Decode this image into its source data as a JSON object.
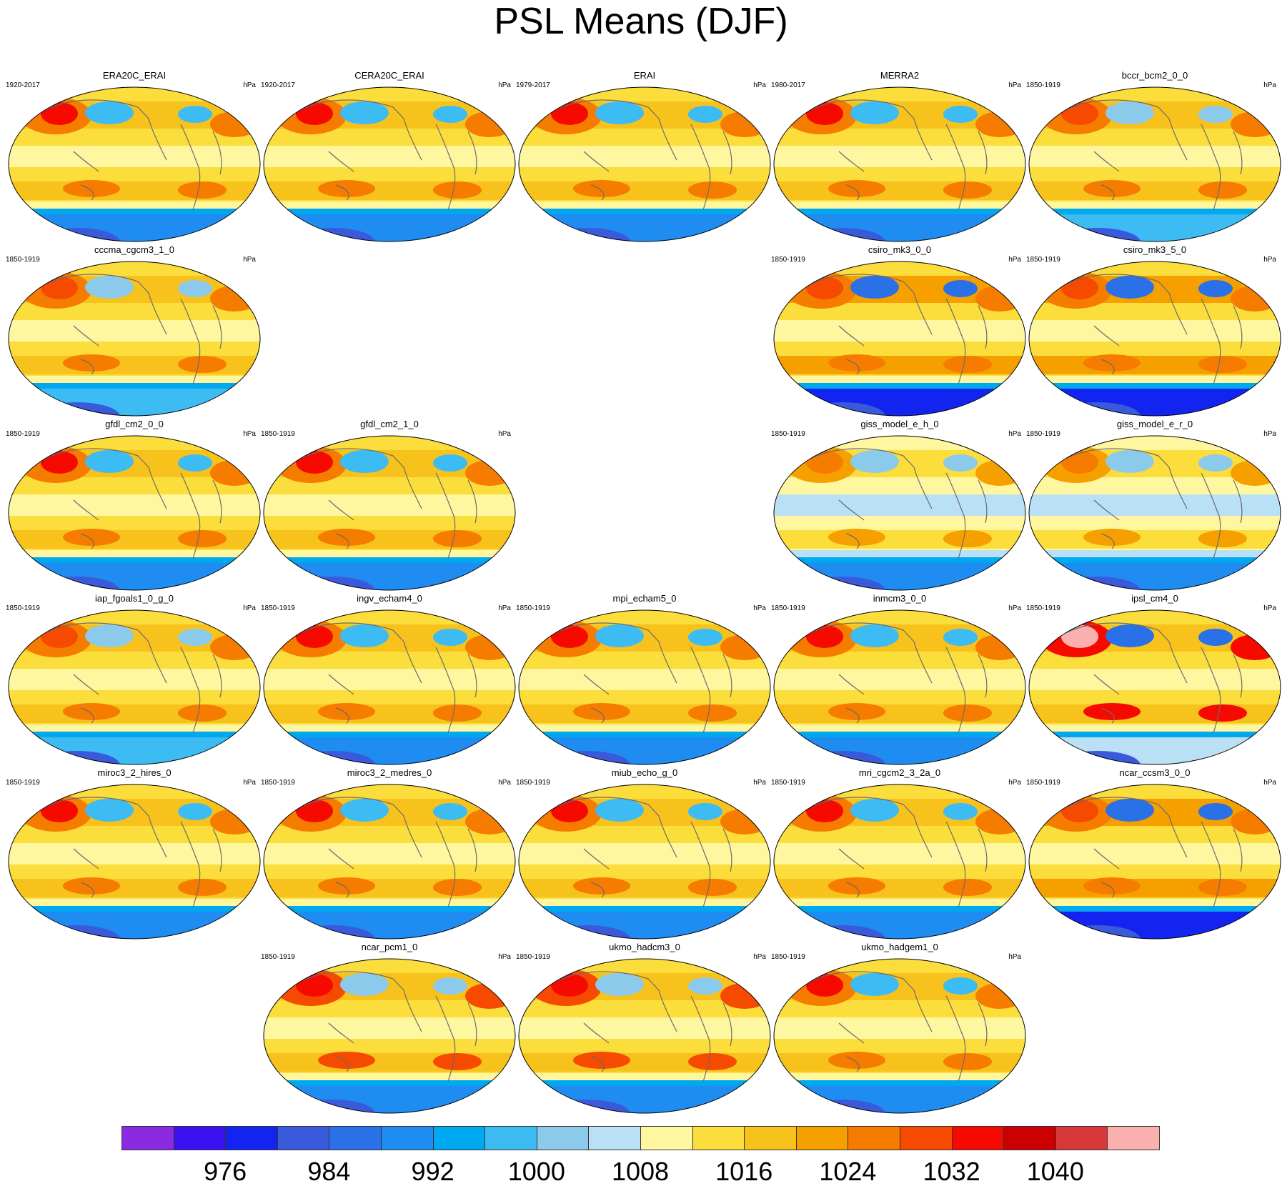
{
  "title": "PSL Means (DJF)",
  "units": "hPa",
  "panels": [
    {
      "name": "ERA20C_ERAI",
      "years": "1920-2017",
      "row": 0,
      "col": 0,
      "variant": "obs"
    },
    {
      "name": "CERA20C_ERAI",
      "years": "1920-2017",
      "row": 0,
      "col": 1,
      "variant": "obs"
    },
    {
      "name": "ERAI",
      "years": "1979-2017",
      "row": 0,
      "col": 2,
      "variant": "obs"
    },
    {
      "name": "MERRA2",
      "years": "1980-2017",
      "row": 0,
      "col": 3,
      "variant": "obs"
    },
    {
      "name": "bccr_bcm2_0_0",
      "years": "1850-1919",
      "row": 0,
      "col": 4,
      "variant": "weak"
    },
    {
      "name": "cccma_cgcm3_1_0",
      "years": "1850-1919",
      "row": 1,
      "col": 0,
      "variant": "weak"
    },
    {
      "name": "csiro_mk3_0_0",
      "years": "1850-1919",
      "row": 1,
      "col": 3,
      "variant": "strong"
    },
    {
      "name": "csiro_mk3_5_0",
      "years": "1850-1919",
      "row": 1,
      "col": 4,
      "variant": "strong"
    },
    {
      "name": "gfdl_cm2_0_0",
      "years": "1850-1919",
      "row": 2,
      "col": 0,
      "variant": "obs"
    },
    {
      "name": "gfdl_cm2_1_0",
      "years": "1850-1919",
      "row": 2,
      "col": 1,
      "variant": "obs"
    },
    {
      "name": "giss_model_e_h_0",
      "years": "1850-1919",
      "row": 2,
      "col": 3,
      "variant": "low"
    },
    {
      "name": "giss_model_e_r_0",
      "years": "1850-1919",
      "row": 2,
      "col": 4,
      "variant": "low"
    },
    {
      "name": "iap_fgoals1_0_g_0",
      "years": "1850-1919",
      "row": 3,
      "col": 0,
      "variant": "weak"
    },
    {
      "name": "ingv_echam4_0",
      "years": "1850-1919",
      "row": 3,
      "col": 1,
      "variant": "obs"
    },
    {
      "name": "mpi_echam5_0",
      "years": "1850-1919",
      "row": 3,
      "col": 2,
      "variant": "obs"
    },
    {
      "name": "inmcm3_0_0",
      "years": "1850-1919",
      "row": 3,
      "col": 3,
      "variant": "obs"
    },
    {
      "name": "ipsl_cm4_0",
      "years": "1850-1919",
      "row": 3,
      "col": 4,
      "variant": "extreme"
    },
    {
      "name": "miroc3_2_hires_0",
      "years": "1850-1919",
      "row": 4,
      "col": 0,
      "variant": "obs"
    },
    {
      "name": "miroc3_2_medres_0",
      "years": "1850-1919",
      "row": 4,
      "col": 1,
      "variant": "obs"
    },
    {
      "name": "miub_echo_g_0",
      "years": "1850-1919",
      "row": 4,
      "col": 2,
      "variant": "obs"
    },
    {
      "name": "mri_cgcm2_3_2a_0",
      "years": "1850-1919",
      "row": 4,
      "col": 3,
      "variant": "obs"
    },
    {
      "name": "ncar_ccsm3_0_0",
      "years": "1850-1919",
      "row": 4,
      "col": 4,
      "variant": "strong"
    },
    {
      "name": "ncar_pcm1_0",
      "years": "1850-1919",
      "row": 5,
      "col": 1,
      "variant": "hot"
    },
    {
      "name": "ukmo_hadcm3_0",
      "years": "1850-1919",
      "row": 5,
      "col": 2,
      "variant": "hot"
    },
    {
      "name": "ukmo_hadgem1_0",
      "years": "1850-1919",
      "row": 5,
      "col": 3,
      "variant": "obs"
    }
  ],
  "colorbar": {
    "colors": [
      "#8a2be2",
      "#3a10f0",
      "#1424f0",
      "#3a5adc",
      "#2a70e6",
      "#1e8cf0",
      "#00a8f0",
      "#3cbcf2",
      "#8ccaec",
      "#b9e0f4",
      "#fff6a0",
      "#fbdd3c",
      "#f8c21c",
      "#f6a000",
      "#f67c00",
      "#f64a00",
      "#f60a00",
      "#cc0000",
      "#d8383a",
      "#fbb0b0"
    ],
    "labels": [
      "976",
      "984",
      "992",
      "1000",
      "1008",
      "1016",
      "1024",
      "1032",
      "1040"
    ]
  }
}
